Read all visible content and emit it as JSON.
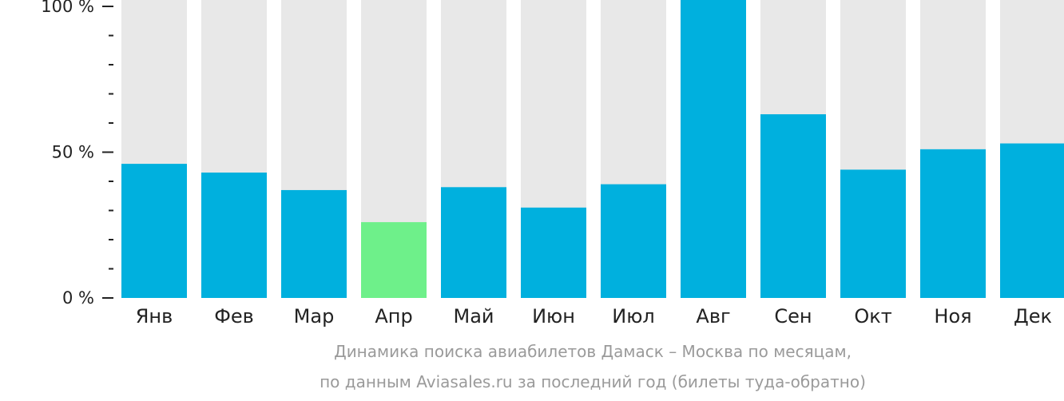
{
  "chart_data": {
    "type": "bar",
    "categories": [
      "Янв",
      "Фев",
      "Мар",
      "Апр",
      "Май",
      "Июн",
      "Июл",
      "Авг",
      "Сен",
      "Окт",
      "Ноя",
      "Дек"
    ],
    "values": [
      46,
      43,
      37,
      26,
      38,
      31,
      39,
      100,
      63,
      44,
      51,
      53
    ],
    "ylim": [
      0,
      100
    ],
    "yticks": [
      {
        "value": 0,
        "label": "0 %"
      },
      {
        "value": 50,
        "label": "50 %"
      },
      {
        "value": 100,
        "label": "100 %"
      }
    ],
    "minor_tick_step": 10,
    "highlight_index": 3,
    "colors": {
      "bar": "#00b0de",
      "highlight": "#6ef08a",
      "background_bar": "#e8e8e8",
      "axis": "#222222"
    },
    "caption_line1": "Динамика поиска авиабилетов Дамаск – Москва по месяцам,",
    "caption_line2": "по данным Aviasales.ru за последний год (билеты туда-обратно)"
  }
}
